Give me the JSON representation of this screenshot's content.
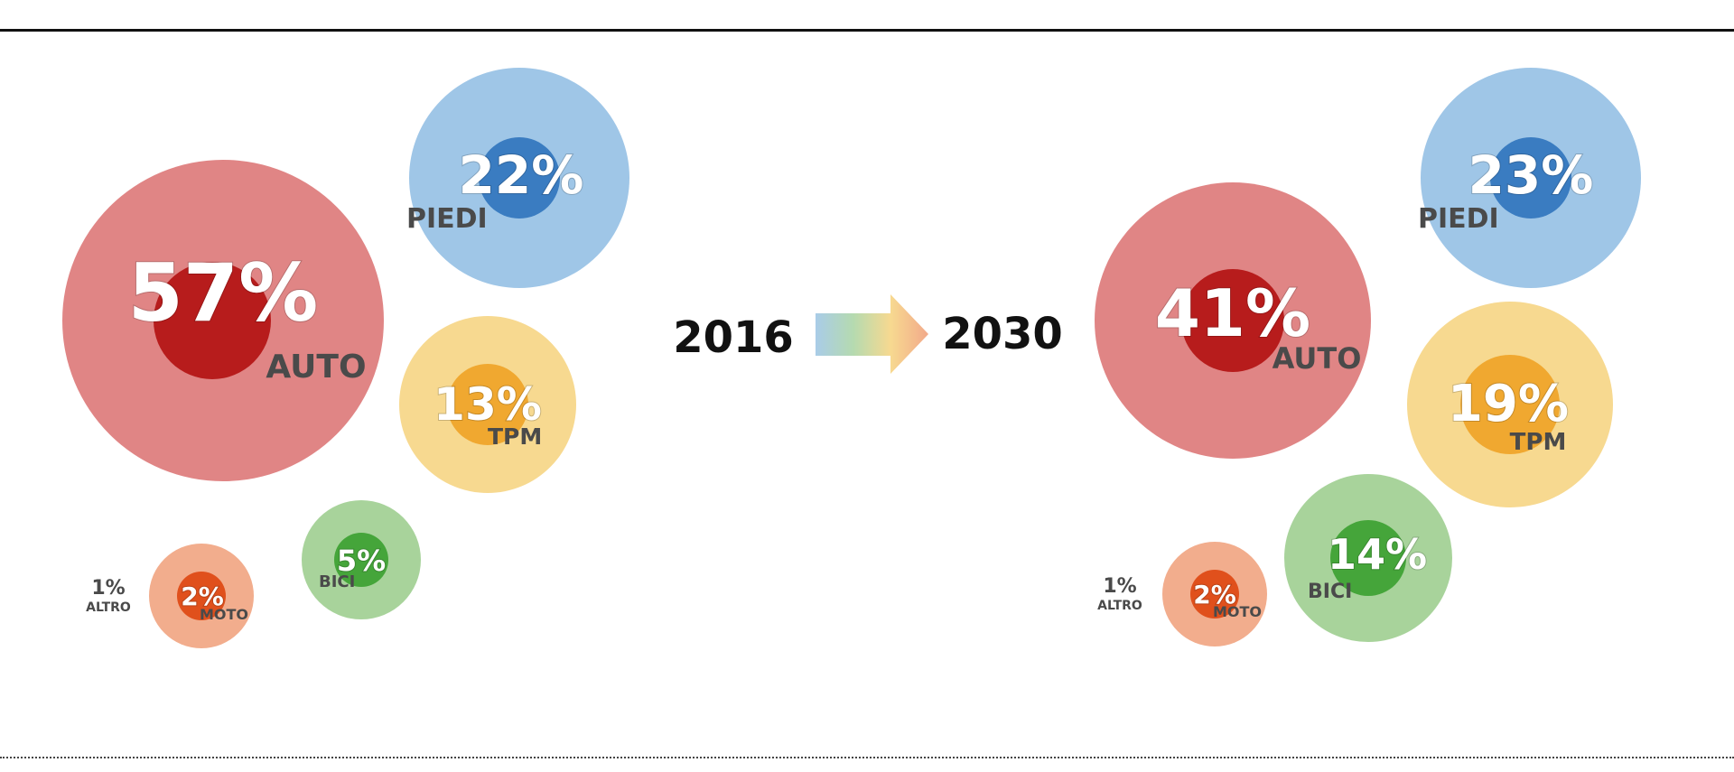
{
  "chart_data": [
    {
      "type": "bubble",
      "year": "2016",
      "series": [
        {
          "label": "AUTO",
          "value": "57%",
          "share": 57,
          "color_outer": "#e08585",
          "color_inner": "#b71c1c"
        },
        {
          "label": "PIEDI",
          "value": "22%",
          "share": 22,
          "color_outer": "#9fc6e7",
          "color_inner": "#3a7cc1"
        },
        {
          "label": "TPM",
          "value": "13%",
          "share": 13,
          "color_outer": "#f7d990",
          "color_inner": "#f0a830"
        },
        {
          "label": "BICI",
          "value": "5%",
          "share": 5,
          "color_outer": "#a8d39b",
          "color_inner": "#45a53a"
        },
        {
          "label": "MOTO",
          "value": "2%",
          "share": 2,
          "color_outer": "#f2ad8d",
          "color_inner": "#e0501c"
        },
        {
          "label": "ALTRO",
          "value": "1%",
          "share": 1,
          "color_outer": null,
          "color_inner": null
        }
      ]
    },
    {
      "type": "bubble",
      "year": "2030",
      "series": [
        {
          "label": "AUTO",
          "value": "41%",
          "share": 41,
          "color_outer": "#e08585",
          "color_inner": "#b71c1c"
        },
        {
          "label": "PIEDI",
          "value": "23%",
          "share": 23,
          "color_outer": "#9fc6e7",
          "color_inner": "#3a7cc1"
        },
        {
          "label": "TPM",
          "value": "19%",
          "share": 19,
          "color_outer": "#f7d990",
          "color_inner": "#f0a830"
        },
        {
          "label": "BICI",
          "value": "14%",
          "share": 14,
          "color_outer": "#a8d39b",
          "color_inner": "#45a53a"
        },
        {
          "label": "MOTO",
          "value": "2%",
          "share": 2,
          "color_outer": "#f2ad8d",
          "color_inner": "#e0501c"
        },
        {
          "label": "ALTRO",
          "value": "1%",
          "share": 1,
          "color_outer": null,
          "color_inner": null
        }
      ]
    }
  ],
  "arrow": {
    "colors": [
      "#a9cce8",
      "#b5dab0",
      "#f7d990",
      "#f2a98a"
    ]
  }
}
